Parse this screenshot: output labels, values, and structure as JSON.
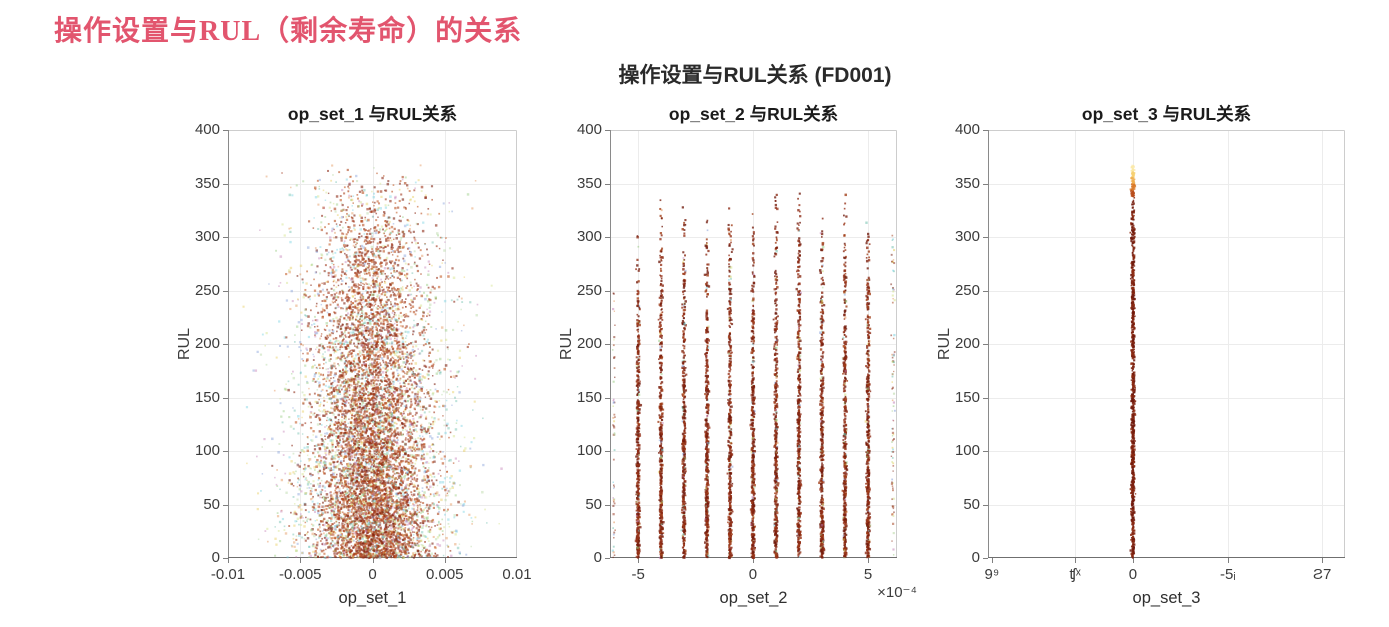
{
  "page": {
    "header": {
      "text": "操作设置与RUL（剩余寿命）的关系",
      "color": "#e2556e"
    },
    "background": "#ffffff"
  },
  "figure": {
    "suptitle": "操作设置与RUL关系 (FD001)"
  },
  "palette": {
    "core": [
      "#8a2410",
      "#9c3114",
      "#ab3f18",
      "#b84d1e",
      "#7c1f0e",
      "#c25a24"
    ],
    "accent": [
      "#e4c94e",
      "#8fc878",
      "#63b9a6",
      "#7d99d6",
      "#c07ab2",
      "#cfe07e",
      "#6fcfe0",
      "#e08a4a",
      "#b0d49a"
    ],
    "stripe_core": [
      "#7a1f0e",
      "#8a2812",
      "#96321a",
      "#6f1a0c",
      "#a03c16"
    ],
    "line_solid": [
      "#6f1a0e",
      "#7e2210",
      "#8e2c12"
    ],
    "line_fade": [
      "#b84d1e",
      "#d97a28",
      "#efae4e",
      "#f7d070",
      "#fbe8a4"
    ]
  },
  "chart_data": [
    {
      "type": "scatter",
      "title": "op_set_1 与RUL关系",
      "xlabel": "op_set_1",
      "ylabel": "RUL",
      "xlim": [
        -0.01,
        0.01
      ],
      "ylim": [
        0,
        400
      ],
      "grid": true,
      "x_ticks": {
        "fracs": [
          0,
          0.25,
          0.5,
          0.75,
          1
        ],
        "labels": [
          "-0.01",
          "-0.005",
          "0",
          "0.005",
          "0.01"
        ]
      },
      "y_ticks": {
        "values": [
          0,
          50,
          100,
          150,
          200,
          250,
          300,
          350,
          400
        ]
      },
      "description": "Dense gaussian cloud of thousands of points centered at op_set_1 = 0 (spread ≈ ±0.006), RUL from 0 up to ~365; density highest at low RUL and fades toward the top; dominant brick-red/brown dots with scattered green, teal, blue, yellow and purple dots on the fringe",
      "render": {
        "kind": "cloud",
        "seed": 7,
        "n": 8600,
        "accent_frac": 0.38,
        "x_sigma_core": 0.0019,
        "x_sigma_accent": 0.0029,
        "x_clip": 0.009,
        "y_max": 368
      }
    },
    {
      "type": "scatter",
      "title": "op_set_2 与RUL关系",
      "xlabel": "op_set_2",
      "ylabel": "RUL",
      "x_multiplier": "×10⁻⁴",
      "xlim": [
        -6.22,
        6.26
      ],
      "ylim": [
        0,
        400
      ],
      "grid": true,
      "x_ticks": {
        "fracs": [
          0.098,
          0.498,
          0.899
        ],
        "labels": [
          "-5",
          "0",
          "5"
        ]
      },
      "y_ticks": {
        "values": [
          0,
          50,
          100,
          150,
          200,
          250,
          300,
          350,
          400
        ]
      },
      "description": "Points fall in 11 narrow vertical stripes at discrete op_set_2 values -5…+5 (×10⁻⁴), each stripe dense dark red from RUL 0 up to ~315-362, with sparse multicolored columns at both plot edges",
      "render": {
        "kind": "stripes",
        "seed": 11,
        "n_per_stripe": 430,
        "accent_frac": 0.1,
        "xlim": [
          -6.22,
          6.26
        ],
        "stripe_x": [
          -5,
          -4,
          -3,
          -2,
          -1,
          0,
          1,
          2,
          3,
          4,
          5
        ],
        "stripe_top": [
          315,
          362,
          352,
          330,
          346,
          332,
          358,
          350,
          338,
          352,
          330
        ],
        "edge_columns": [
          {
            "x": -6.05,
            "top": 255,
            "n": 55
          },
          {
            "x": 6.08,
            "top": 305,
            "n": 90
          }
        ]
      }
    },
    {
      "type": "scatter",
      "title": "op_set_3 与RUL关系",
      "xlabel": "op_set_3",
      "ylabel": "RUL",
      "ylim": [
        0,
        400
      ],
      "grid": true,
      "x_ticks": {
        "fracs": [
          0.011,
          0.244,
          0.406,
          0.672,
          0.936
        ],
        "labels": [
          "9⁹",
          "ʧˣ",
          "0",
          "-5ᵢ",
          "Ƨ7"
        ],
        "labels_garbled": true
      },
      "y_ticks": {
        "values": [
          0,
          50,
          100,
          150,
          200,
          250,
          300,
          350,
          400
        ]
      },
      "description": "All points share a single op_set_3 value: one solid dark-red vertical line at the '0' tick from RUL 0 to ~340, fading through orange to pale yellow up to ~365; x tick labels are blurred/garbled in the source image",
      "render": {
        "kind": "line",
        "seed": 5,
        "x_frac": 0.406,
        "n_solid": 850,
        "solid_top": 338,
        "n_fade": 140,
        "fade_top": 367
      }
    }
  ]
}
